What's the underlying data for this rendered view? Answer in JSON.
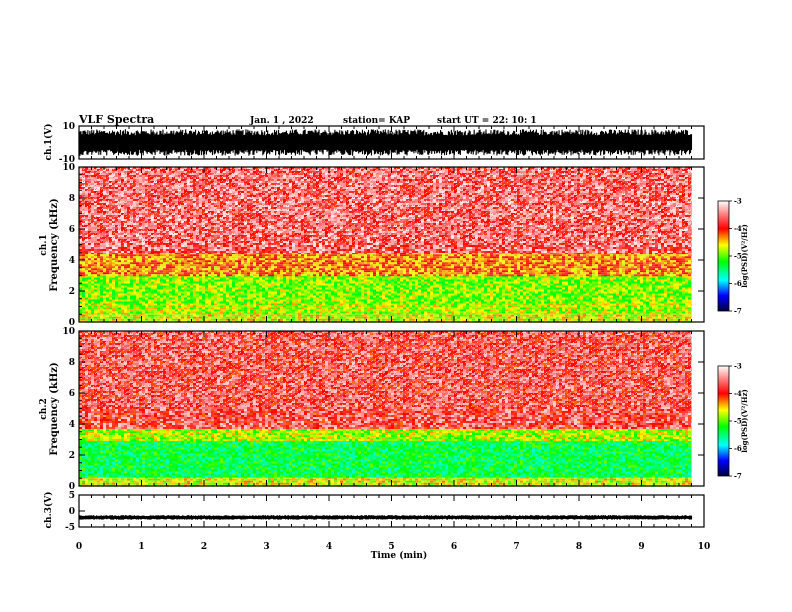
{
  "header": {
    "title": "VLF Spectra",
    "date": "Jan. 1 , 2022",
    "station": "station= KAP",
    "start": "start  UT =   22: 10: 1"
  },
  "chart_data": [
    {
      "type": "line",
      "panel": "ch1-waveform",
      "ylabel": "ch.1(V)",
      "ylim": [
        -10,
        10
      ],
      "y_tick_labels": [
        "10",
        "-10"
      ],
      "xlim": [
        0,
        10
      ],
      "data_extent_min": 9.8,
      "description": "dense waveform filling roughly -8 to +8 V"
    },
    {
      "type": "heatmap",
      "panel": "ch1-spectrogram",
      "ylabel": "ch.1\nFrequency  (kHz)",
      "ylim": [
        0,
        10
      ],
      "y_ticks": [
        0,
        2,
        4,
        6,
        8,
        10
      ],
      "xlim": [
        0,
        10
      ],
      "data_extent_min": 9.8,
      "colorbar": {
        "label": "log(PSD)(V²/Hz)",
        "range": [
          -7,
          -3
        ],
        "ticks": [
          "-3",
          "-4",
          "-5",
          "-6",
          "-7"
        ]
      },
      "levels_by_band": [
        {
          "f_khz": [
            0,
            0.6
          ],
          "log_psd": -4.5
        },
        {
          "f_khz": [
            0.6,
            1.2
          ],
          "log_psd": -4.6
        },
        {
          "f_khz": [
            1.2,
            3.0
          ],
          "log_psd": -4.7
        },
        {
          "f_khz": [
            3.0,
            4.5
          ],
          "log_psd": -4.1
        },
        {
          "f_khz": [
            4.5,
            10
          ],
          "log_psd": -3.5
        }
      ]
    },
    {
      "type": "heatmap",
      "panel": "ch2-spectrogram",
      "ylabel": "ch.2\nFrequency  (kHz)",
      "ylim": [
        0,
        10
      ],
      "y_ticks": [
        0,
        2,
        4,
        6,
        8,
        10
      ],
      "xlim": [
        0,
        10
      ],
      "data_extent_min": 9.8,
      "colorbar": {
        "label": "log(PSD)(V²/Hz)",
        "range": [
          -7,
          -3
        ],
        "ticks": [
          "-3",
          "-4",
          "-5",
          "-6",
          "-7"
        ]
      },
      "levels_by_band": [
        {
          "f_khz": [
            0,
            0.6
          ],
          "log_psd": -4.5
        },
        {
          "f_khz": [
            0.6,
            3.0
          ],
          "log_psd": -5.2
        },
        {
          "f_khz": [
            3.0,
            3.8
          ],
          "log_psd": -4.6
        },
        {
          "f_khz": [
            3.8,
            10
          ],
          "log_psd": -3.6
        }
      ]
    },
    {
      "type": "line",
      "panel": "ch3-waveform",
      "ylabel": "ch.3(V)",
      "ylim": [
        -5,
        5
      ],
      "y_tick_labels": [
        "5",
        "0",
        "-5"
      ],
      "xlim": [
        0,
        10
      ],
      "data_extent_min": 9.8,
      "description": "narrow band near -2 V"
    }
  ],
  "x_axis": {
    "label": "Time  (min)",
    "ticks": [
      "0",
      "1",
      "2",
      "3",
      "4",
      "5",
      "6",
      "7",
      "8",
      "9",
      "10"
    ]
  },
  "colors": {
    "high": "#ff0000",
    "mid": "#ffff00",
    "low": "#00ff00",
    "background_noise": "#ffffff"
  }
}
